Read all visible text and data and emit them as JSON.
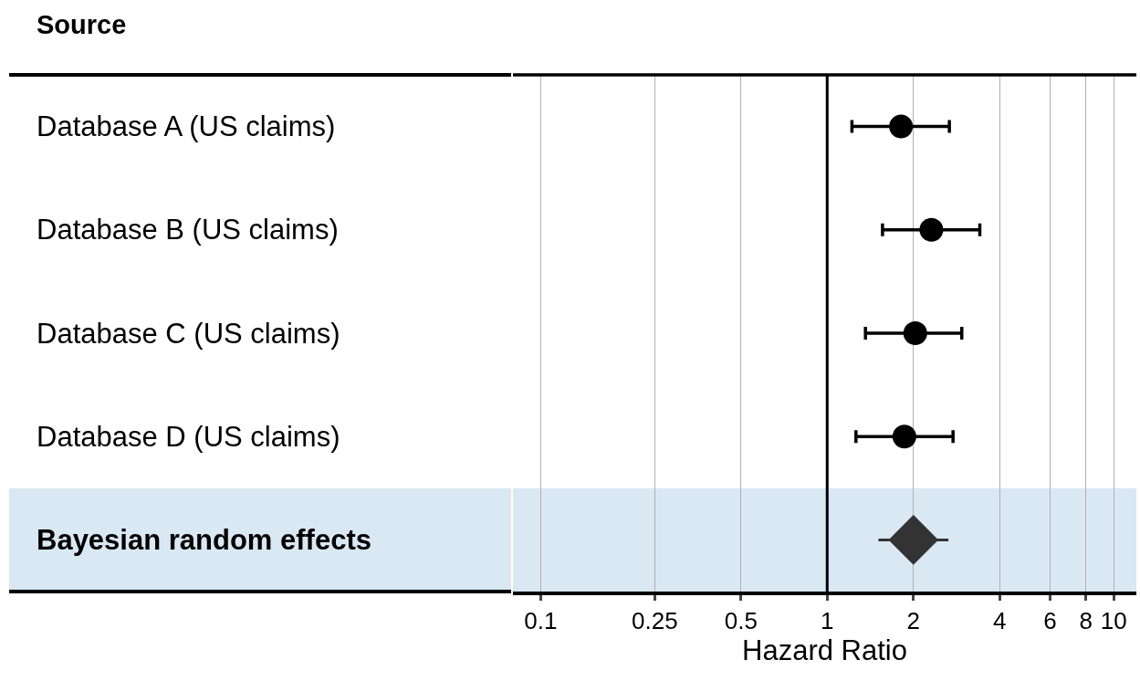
{
  "chart_data": {
    "type": "scatter",
    "orientation": "horizontal",
    "ylabel": "Source",
    "xlabel": "Hazard Ratio",
    "categories": [
      "Database A (US claims)",
      "Database B (US claims)",
      "Database C (US claims)",
      "Database D (US claims)",
      "Bayesian random effects"
    ],
    "series": [
      {
        "color": "#000000",
        "marker": "circle",
        "values": [
          1.81,
          2.31,
          2.03,
          1.86,
          null
        ],
        "errors": [
          [
            1.22,
            2.67
          ],
          [
            1.56,
            3.41
          ],
          [
            1.36,
            2.95
          ],
          [
            1.26,
            2.75
          ],
          null
        ]
      },
      {
        "color": "#333333",
        "marker": "diamond",
        "values": [
          null,
          null,
          null,
          null,
          2.0
        ],
        "errors": [
          null,
          null,
          null,
          null,
          [
            1.51,
            2.65
          ]
        ]
      }
    ],
    "log": "x",
    "xlim": [
      0.08,
      12
    ],
    "xticks": [
      0.1,
      0.25,
      0.5,
      1,
      2,
      4,
      6,
      8,
      10
    ],
    "grid": "x",
    "ref_lines": [
      {
        "axis": "x",
        "value": 1,
        "color": "#000000"
      }
    ],
    "bands": [
      {
        "axis": "y",
        "from": "Bayesian random effects",
        "to": "Bayesian random effects",
        "color": "#d9e8f3"
      }
    ]
  }
}
